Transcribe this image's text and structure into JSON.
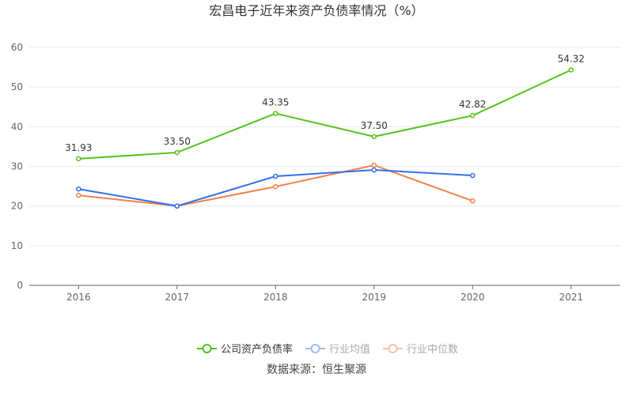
{
  "chart_data": {
    "type": "line",
    "title": "宏昌电子近年来资产负债率情况（%）",
    "categories": [
      "2016",
      "2017",
      "2018",
      "2019",
      "2020",
      "2021"
    ],
    "ylim": [
      0,
      60
    ],
    "yticks": [
      0,
      10,
      20,
      30,
      40,
      50,
      60
    ],
    "grid": true,
    "legend_placement": "bottom",
    "series": [
      {
        "name": "公司资产负债率",
        "color": "#52c41a",
        "values": [
          31.93,
          33.5,
          43.35,
          37.5,
          42.82,
          54.32
        ],
        "labels": [
          "31.93",
          "33.50",
          "43.35",
          "37.50",
          "42.82",
          "54.32"
        ],
        "legend_active": true
      },
      {
        "name": "行业均值",
        "color": "#3370eb",
        "legend_color": "#9dbaf5",
        "values": [
          24.3,
          20.0,
          27.5,
          29.1,
          27.7,
          null
        ],
        "legend_active": false
      },
      {
        "name": "行业中位数",
        "color": "#f5804d",
        "legend_color": "#f9bfa6",
        "values": [
          22.7,
          20.0,
          24.9,
          30.3,
          21.3,
          null
        ],
        "legend_active": false
      }
    ],
    "source": "数据来源：恒生聚源"
  }
}
